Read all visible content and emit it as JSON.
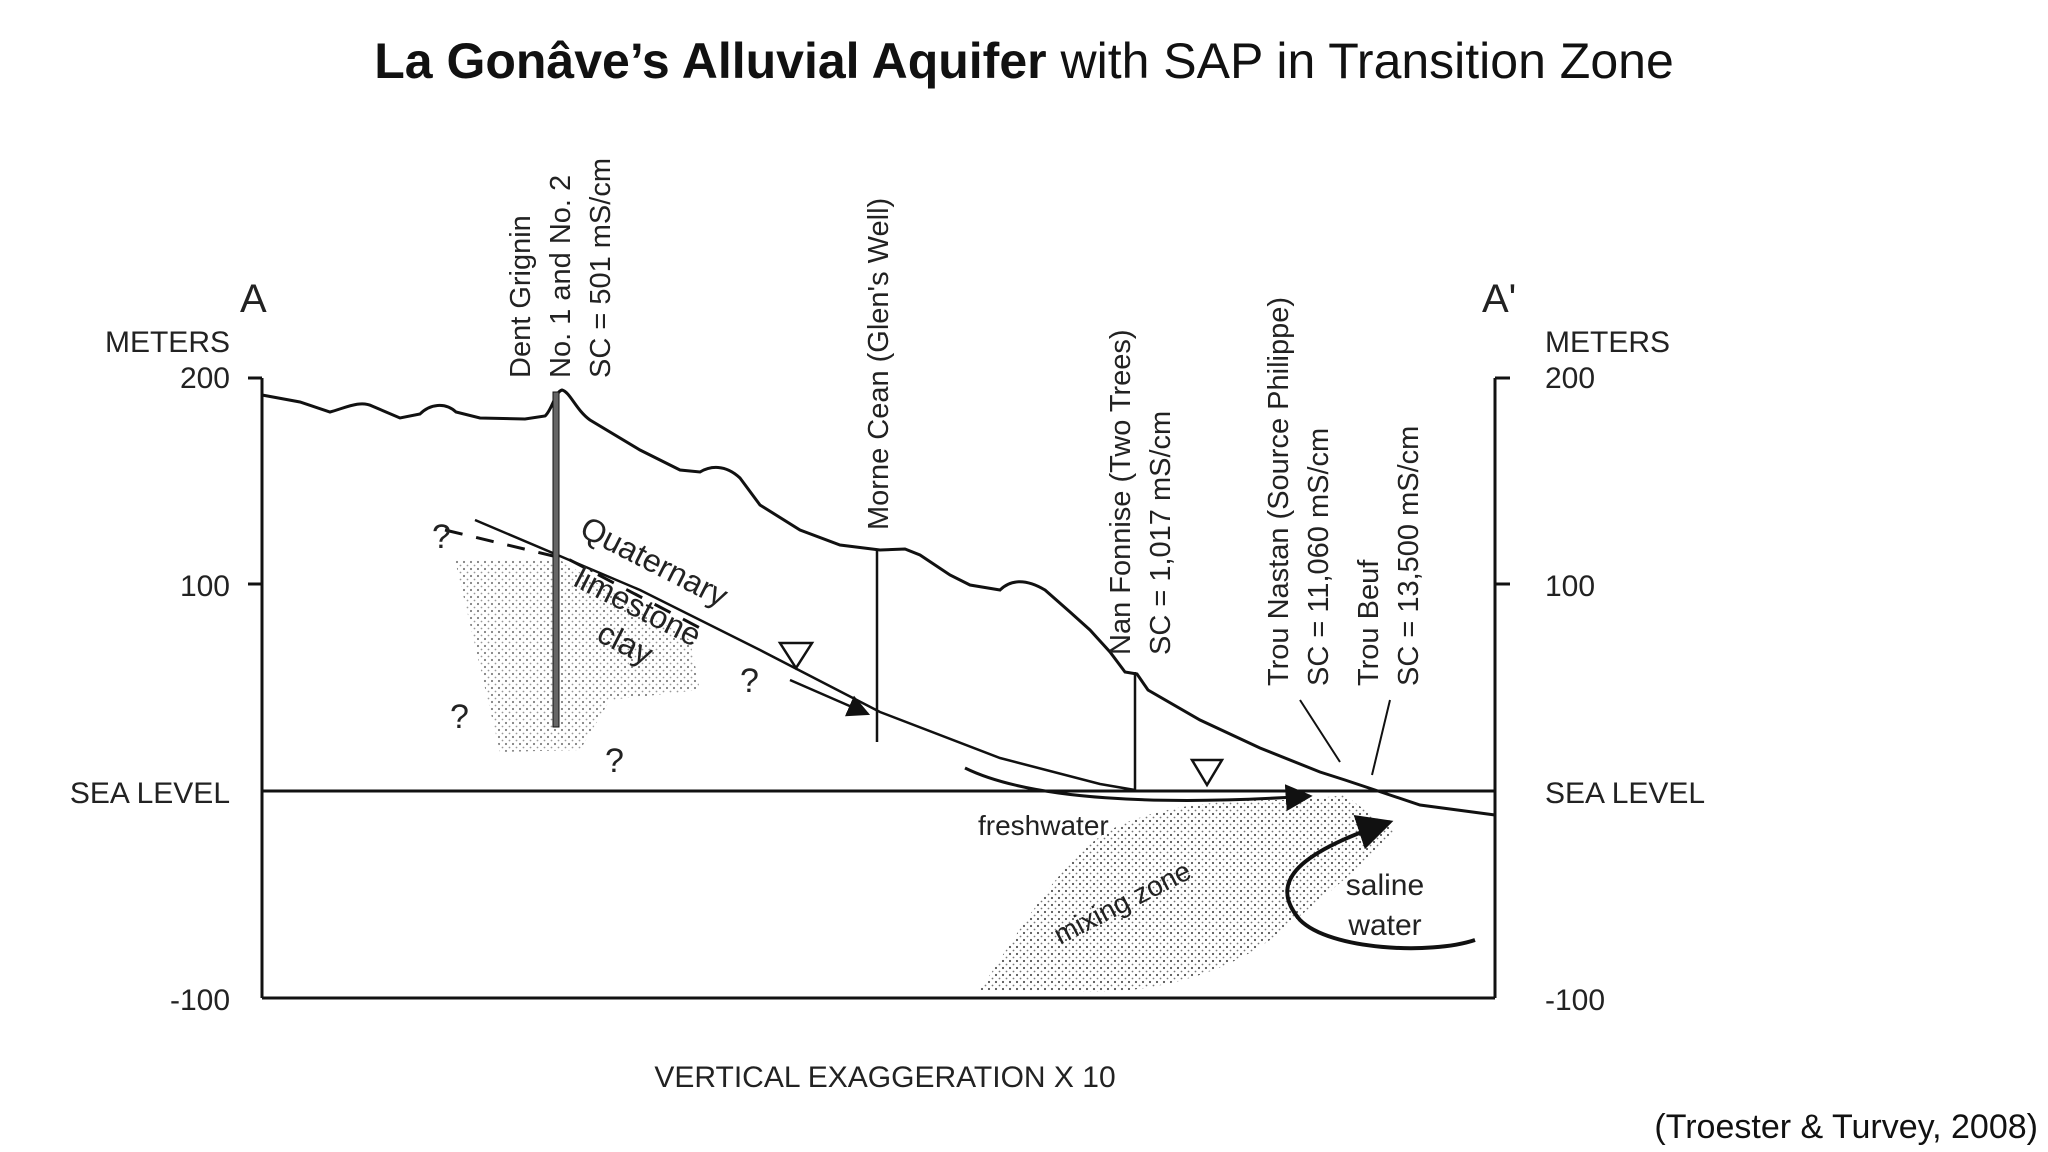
{
  "title": {
    "bold_part": "La Gonâve’s Alluvial Aquifer",
    "rest_part": " with SAP in Transition Zone"
  },
  "citation": "(Troester & Turvey, 2008)",
  "diagram": {
    "section_start_label": "A",
    "section_end_label": "A'",
    "left_axis": {
      "unit": "METERS",
      "ticks": [
        "200",
        "100",
        "SEA LEVEL",
        "-100"
      ]
    },
    "right_axis": {
      "unit": "METERS",
      "ticks": [
        "200",
        "100",
        "SEA LEVEL",
        "-100"
      ]
    },
    "wells": [
      {
        "lines": [
          "Dent Grignin",
          "No. 1 and No. 2",
          "SC = 501 mS/cm"
        ]
      },
      {
        "lines": [
          "Morne Cean (Glen's Well)"
        ]
      },
      {
        "lines": [
          "Nan Fonnise (Two Trees)",
          "SC = 1,017 mS/cm"
        ]
      },
      {
        "lines": [
          "Trou Nastan (Source Philippe)",
          "SC = 11,060 mS/cm"
        ]
      },
      {
        "lines": [
          "Trou Beuf",
          "SC = 13,500 mS/cm"
        ]
      }
    ],
    "unit_labels": {
      "quaternary": "Quaternary",
      "limestone": "limestone",
      "clay": "clay",
      "question": "?",
      "freshwater": "freshwater",
      "mixing_zone": "mixing zone",
      "saline_line1": "saline",
      "saline_line2": "water"
    },
    "footer": "VERTICAL EXAGGERATION X 10"
  }
}
